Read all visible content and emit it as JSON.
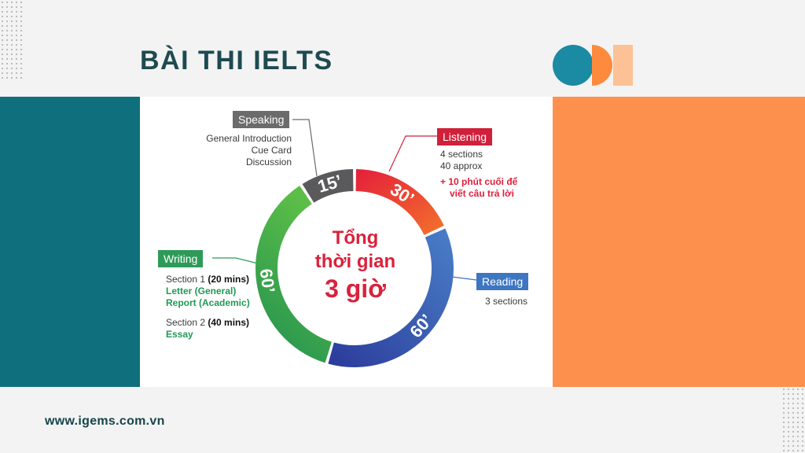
{
  "header": {
    "title": "BÀI THI IELTS"
  },
  "footer": {
    "url": "www.igems.com.vn"
  },
  "colors": {
    "teal": "#0f6f7d",
    "orange": "#fe904d",
    "speaking": "#5a5a5c",
    "listening": "#e5233a",
    "reading": "#3e76c2",
    "writing": "#2e9a58",
    "center_text": "#d9223c"
  },
  "diagram": {
    "center": {
      "line1": "Tổng",
      "line2": "thời gian",
      "line3": "3 giờ"
    },
    "segments": [
      {
        "id": "listening",
        "tag": "Listening",
        "duration": "30’",
        "minutes": 30,
        "details": [
          "4 sections",
          "40 approx"
        ],
        "highlight": [
          "+ 10 phút cuối để",
          "viết câu trả lời"
        ]
      },
      {
        "id": "reading",
        "tag": "Reading",
        "duration": "60’",
        "minutes": 60,
        "details": [
          "3 sections"
        ]
      },
      {
        "id": "writing",
        "tag": "Writing",
        "duration": "60’",
        "minutes": 60,
        "section1": "Section 1 ",
        "section1_time": "(20 mins)",
        "section1_tasks": [
          "Letter (General)",
          "Report (Academic)"
        ],
        "section2": "Section 2 ",
        "section2_time": "(40 mins)",
        "section2_tasks": [
          "Essay"
        ]
      },
      {
        "id": "speaking",
        "tag": "Speaking",
        "duration": "15’",
        "minutes": 15,
        "details": [
          "General Introduction",
          "Cue Card",
          "Discussion"
        ]
      }
    ]
  }
}
